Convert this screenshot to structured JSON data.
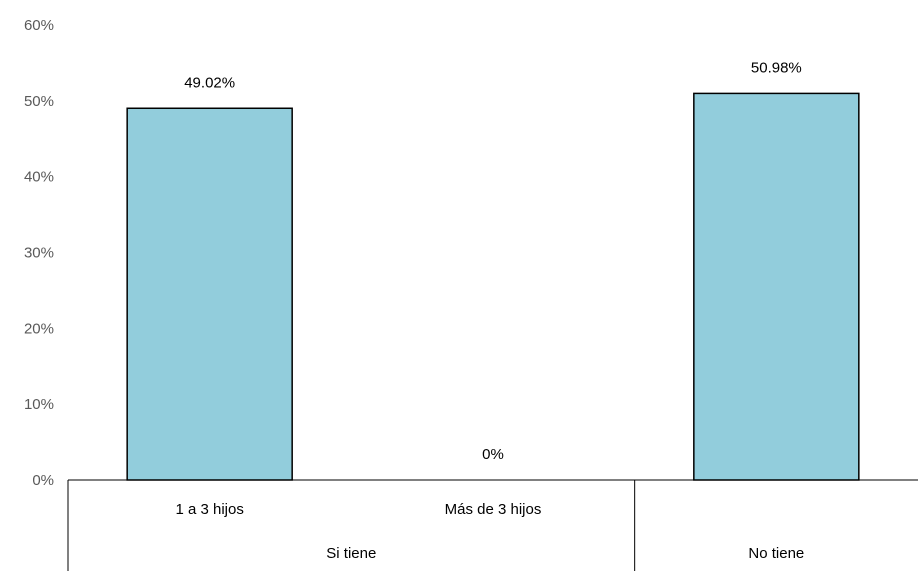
{
  "chart_data": {
    "type": "bar",
    "title": "",
    "xlabel": "",
    "ylabel": "",
    "categories": [
      "1 a 3 hijos",
      "Más de 3 hijos",
      ""
    ],
    "groups": [
      {
        "label": "Si tiene",
        "categories": [
          "1 a 3 hijos",
          "Más de 3 hijos"
        ]
      },
      {
        "label": "No tiene",
        "categories": [
          ""
        ]
      }
    ],
    "values": [
      49.02,
      0,
      50.98
    ],
    "data_labels": [
      "49.02%",
      "0%",
      "50.98%"
    ],
    "ylim": [
      0,
      60
    ],
    "yticks": [
      0,
      10,
      20,
      30,
      40,
      50,
      60
    ],
    "ytick_labels": [
      "0%",
      "10%",
      "20%",
      "30%",
      "40%",
      "50%",
      "60%"
    ],
    "grid": false,
    "legend": "none",
    "bar_color": "#92cddc",
    "bar_edge_color": "#000000"
  }
}
